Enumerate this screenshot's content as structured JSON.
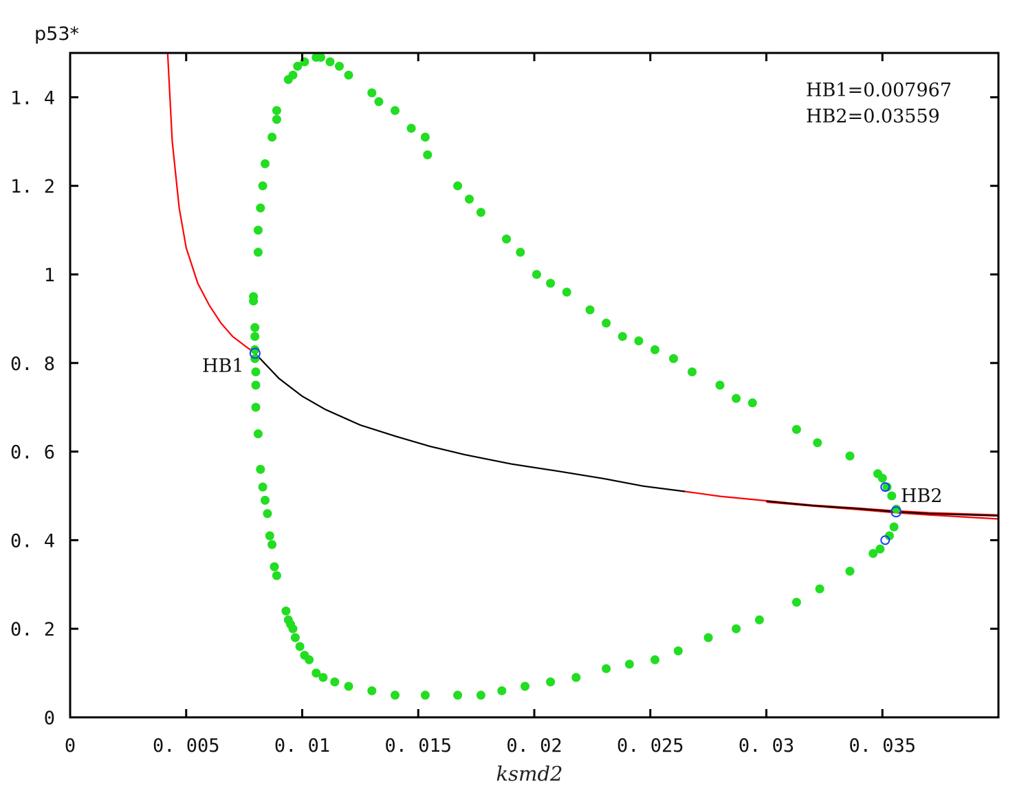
{
  "chart_data": {
    "type": "scatter",
    "title": "",
    "xlabel": "ksmd2",
    "ylabel": "p53*",
    "xlim": [
      0,
      0.04
    ],
    "ylim": [
      0,
      1.5
    ],
    "x_ticks": [
      {
        "value": 0,
        "label": "0"
      },
      {
        "value": 0.005,
        "label": "0. 005"
      },
      {
        "value": 0.01,
        "label": "0. 01"
      },
      {
        "value": 0.015,
        "label": "0. 015"
      },
      {
        "value": 0.02,
        "label": "0. 02"
      },
      {
        "value": 0.025,
        "label": "0. 025"
      },
      {
        "value": 0.03,
        "label": "0. 03"
      },
      {
        "value": 0.035,
        "label": "0. 035"
      }
    ],
    "y_ticks": [
      {
        "value": 0,
        "label": "0"
      },
      {
        "value": 0.2,
        "label": "0. 2"
      },
      {
        "value": 0.4,
        "label": "0. 4"
      },
      {
        "value": 0.6,
        "label": "0. 6"
      },
      {
        "value": 0.8,
        "label": "0. 8"
      },
      {
        "value": 1.0,
        "label": "1"
      },
      {
        "value": 1.2,
        "label": "1. 2"
      },
      {
        "value": 1.4,
        "label": "1. 4"
      }
    ],
    "grid": false,
    "annotations": [
      {
        "text": "HB1=0.007967"
      },
      {
        "text": "HB2=0.03559"
      }
    ],
    "series": [
      {
        "style": "line",
        "color": "#ff0000",
        "points": [
          [
            0.0042,
            1.5
          ],
          [
            0.0044,
            1.3
          ],
          [
            0.0047,
            1.15
          ],
          [
            0.005,
            1.06
          ],
          [
            0.0055,
            0.98
          ],
          [
            0.006,
            0.93
          ],
          [
            0.0065,
            0.89
          ],
          [
            0.007,
            0.86
          ],
          [
            0.0075,
            0.84
          ],
          [
            0.007967,
            0.822
          ]
        ]
      },
      {
        "style": "line",
        "color": "#000000",
        "points": [
          [
            0.007967,
            0.822
          ],
          [
            0.009,
            0.765
          ],
          [
            0.01,
            0.725
          ],
          [
            0.011,
            0.695
          ],
          [
            0.0125,
            0.66
          ],
          [
            0.014,
            0.635
          ],
          [
            0.0155,
            0.612
          ],
          [
            0.017,
            0.593
          ],
          [
            0.019,
            0.572
          ],
          [
            0.021,
            0.556
          ],
          [
            0.023,
            0.539
          ],
          [
            0.0247,
            0.522
          ],
          [
            0.0265,
            0.51
          ]
        ]
      },
      {
        "style": "line",
        "color": "#ff0000",
        "points": [
          [
            0.0265,
            0.51
          ],
          [
            0.028,
            0.499
          ],
          [
            0.03,
            0.489
          ],
          [
            0.032,
            0.479
          ],
          [
            0.034,
            0.472
          ],
          [
            0.03559,
            0.466
          ],
          [
            0.037,
            0.462
          ],
          [
            0.04,
            0.457
          ]
        ]
      },
      {
        "style": "line",
        "color": "#ff0000",
        "points": [
          [
            0.03,
            0.486
          ],
          [
            0.032,
            0.477
          ],
          [
            0.034,
            0.469
          ],
          [
            0.03559,
            0.462
          ],
          [
            0.037,
            0.457
          ],
          [
            0.04,
            0.448
          ]
        ]
      },
      {
        "style": "line",
        "color": "#000000",
        "points": [
          [
            0.03,
            0.488
          ],
          [
            0.032,
            0.478
          ],
          [
            0.034,
            0.471
          ],
          [
            0.03559,
            0.464
          ],
          [
            0.037,
            0.46
          ],
          [
            0.04,
            0.455
          ]
        ]
      },
      {
        "style": "dots",
        "color": "#22dd22",
        "points": [
          [
            0.00796,
            0.81
          ],
          [
            0.00796,
            0.83
          ],
          [
            0.00796,
            0.86
          ],
          [
            0.00796,
            0.88
          ],
          [
            0.0079,
            0.94
          ],
          [
            0.0079,
            0.95
          ],
          [
            0.0081,
            1.05
          ],
          [
            0.0081,
            1.1
          ],
          [
            0.0082,
            1.15
          ],
          [
            0.0083,
            1.2
          ],
          [
            0.0084,
            1.25
          ],
          [
            0.0087,
            1.31
          ],
          [
            0.0089,
            1.35
          ],
          [
            0.0089,
            1.37
          ],
          [
            0.0094,
            1.44
          ],
          [
            0.0096,
            1.45
          ],
          [
            0.0098,
            1.47
          ],
          [
            0.0101,
            1.48
          ],
          [
            0.0106,
            1.49
          ],
          [
            0.0108,
            1.49
          ],
          [
            0.0112,
            1.48
          ],
          [
            0.0116,
            1.47
          ],
          [
            0.012,
            1.45
          ],
          [
            0.013,
            1.41
          ],
          [
            0.0133,
            1.39
          ],
          [
            0.014,
            1.37
          ],
          [
            0.0147,
            1.33
          ],
          [
            0.0153,
            1.31
          ],
          [
            0.0154,
            1.27
          ],
          [
            0.0167,
            1.2
          ],
          [
            0.0172,
            1.17
          ],
          [
            0.0177,
            1.14
          ],
          [
            0.0188,
            1.08
          ],
          [
            0.0194,
            1.05
          ],
          [
            0.0201,
            1.0
          ],
          [
            0.0207,
            0.98
          ],
          [
            0.0214,
            0.96
          ],
          [
            0.0224,
            0.92
          ],
          [
            0.0231,
            0.89
          ],
          [
            0.0238,
            0.86
          ],
          [
            0.0245,
            0.85
          ],
          [
            0.0252,
            0.83
          ],
          [
            0.026,
            0.81
          ],
          [
            0.0268,
            0.78
          ],
          [
            0.028,
            0.75
          ],
          [
            0.0287,
            0.72
          ],
          [
            0.0294,
            0.71
          ],
          [
            0.0313,
            0.65
          ],
          [
            0.0322,
            0.62
          ],
          [
            0.0336,
            0.59
          ],
          [
            0.0348,
            0.55
          ],
          [
            0.035,
            0.54
          ],
          [
            0.0352,
            0.52
          ],
          [
            0.0354,
            0.5
          ],
          [
            0.0356,
            0.47
          ],
          [
            0.0355,
            0.43
          ],
          [
            0.0353,
            0.41
          ],
          [
            0.0349,
            0.38
          ],
          [
            0.0346,
            0.37
          ],
          [
            0.0336,
            0.33
          ],
          [
            0.0323,
            0.29
          ],
          [
            0.0313,
            0.26
          ],
          [
            0.0297,
            0.22
          ],
          [
            0.0287,
            0.2
          ],
          [
            0.0275,
            0.18
          ],
          [
            0.0262,
            0.15
          ],
          [
            0.0252,
            0.13
          ],
          [
            0.0241,
            0.12
          ],
          [
            0.0231,
            0.11
          ],
          [
            0.0218,
            0.09
          ],
          [
            0.0207,
            0.08
          ],
          [
            0.0196,
            0.07
          ],
          [
            0.0186,
            0.06
          ],
          [
            0.0177,
            0.05
          ],
          [
            0.0167,
            0.05
          ],
          [
            0.0153,
            0.05
          ],
          [
            0.014,
            0.05
          ],
          [
            0.013,
            0.06
          ],
          [
            0.012,
            0.07
          ],
          [
            0.0114,
            0.08
          ],
          [
            0.0109,
            0.09
          ],
          [
            0.0106,
            0.1
          ],
          [
            0.0103,
            0.13
          ],
          [
            0.0101,
            0.14
          ],
          [
            0.0099,
            0.16
          ],
          [
            0.0097,
            0.18
          ],
          [
            0.0096,
            0.2
          ],
          [
            0.0095,
            0.21
          ],
          [
            0.0094,
            0.22
          ],
          [
            0.0093,
            0.24
          ],
          [
            0.0089,
            0.32
          ],
          [
            0.0088,
            0.34
          ],
          [
            0.0087,
            0.39
          ],
          [
            0.0086,
            0.41
          ],
          [
            0.0085,
            0.46
          ],
          [
            0.0084,
            0.49
          ],
          [
            0.0083,
            0.52
          ],
          [
            0.0082,
            0.56
          ],
          [
            0.0081,
            0.64
          ],
          [
            0.008,
            0.7
          ],
          [
            0.008,
            0.75
          ],
          [
            0.008,
            0.78
          ]
        ]
      }
    ],
    "points_labeled": [
      {
        "label": "HB1",
        "x": 0.007967,
        "y": 0.822
      },
      {
        "label": "HB2",
        "x": 0.03559,
        "y": 0.464
      }
    ],
    "small_markers": [
      [
        0.03512,
        0.52
      ],
      [
        0.03512,
        0.4
      ]
    ]
  }
}
